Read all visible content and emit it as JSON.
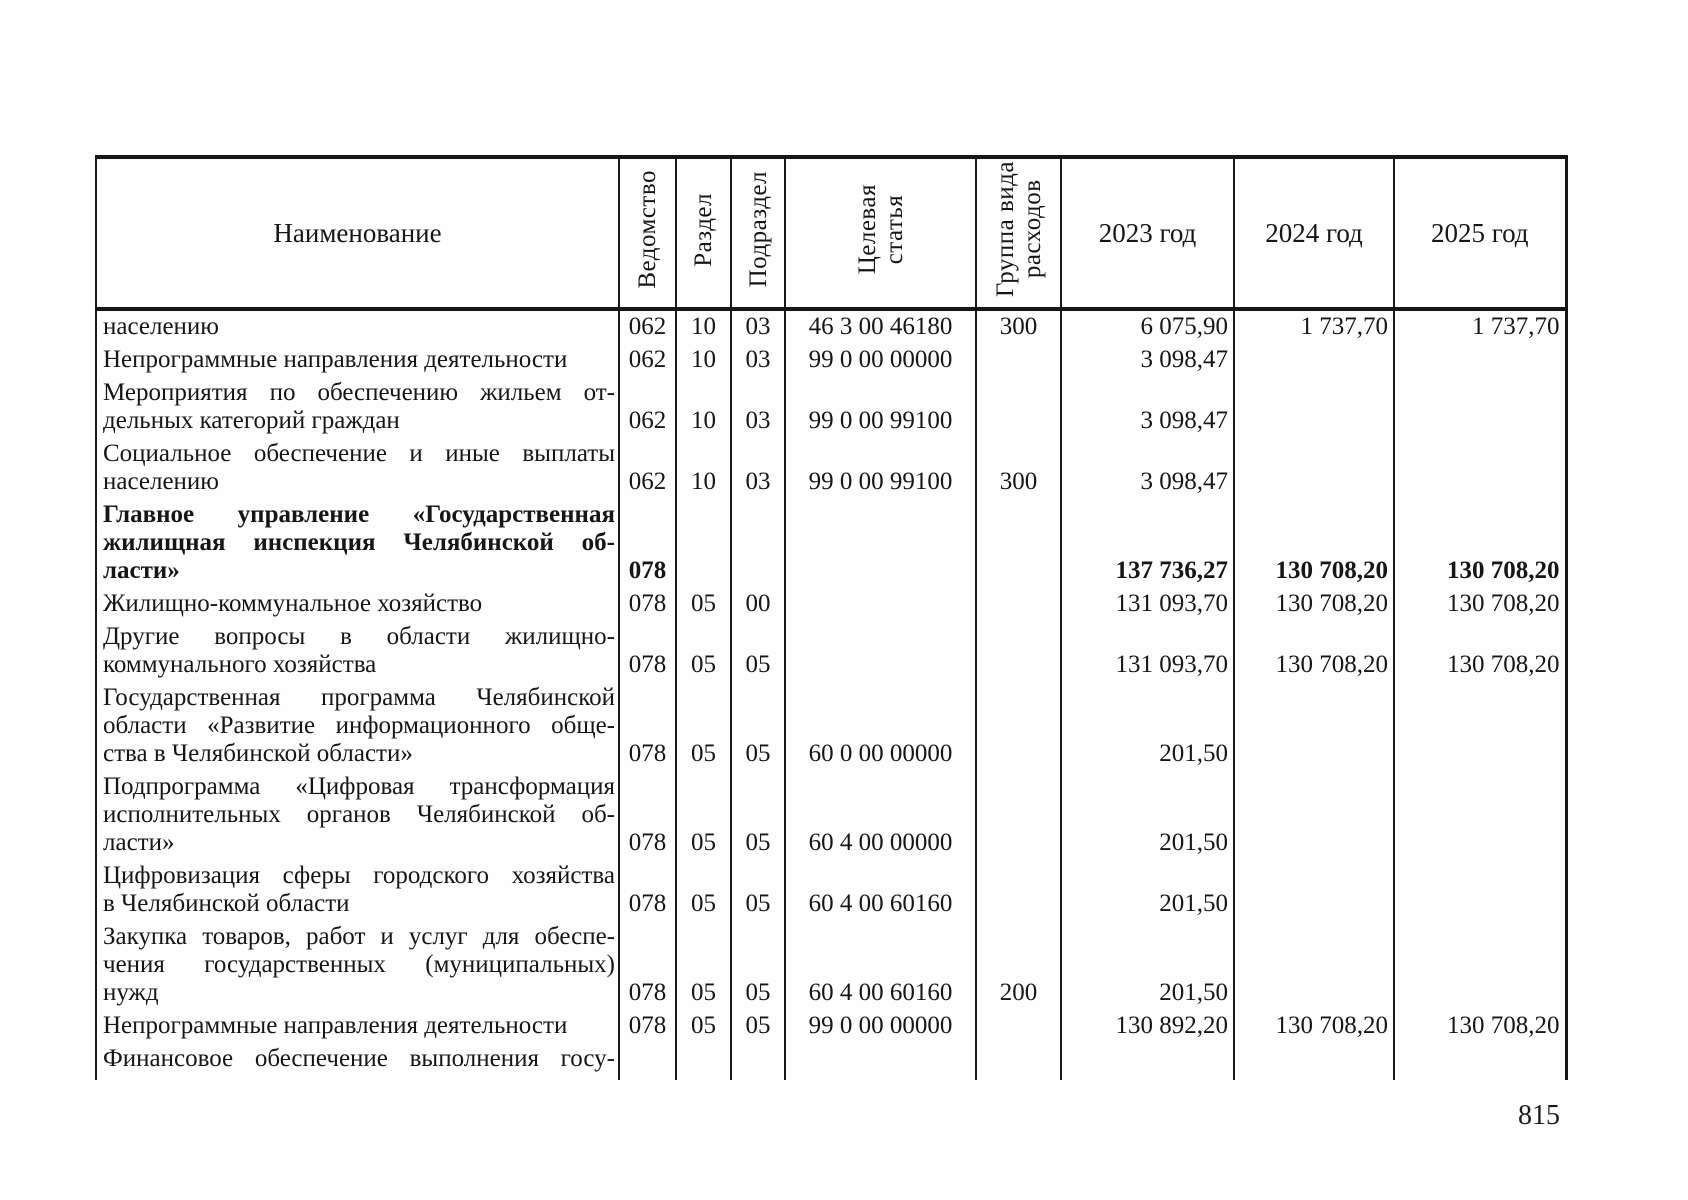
{
  "page_number": "815",
  "table": {
    "headers": {
      "name": "Наименование",
      "ved": "Ведомство",
      "raz": "Раздел",
      "pod": "Подраздел",
      "cel": "Целевая\nстатья",
      "grp": "Группа вида\nрасходов",
      "y2023": "2023 год",
      "y2024": "2024 год",
      "y2025": "2025 год"
    },
    "rows": [
      {
        "lines": [
          "населению"
        ],
        "ved": "062",
        "raz": "10",
        "pod": "03",
        "cel": "46 3 00 46180",
        "grp": "300",
        "y2023": "6 075,90",
        "y2024": "1 737,70",
        "y2025": "1 737,70"
      },
      {
        "lines": [
          "Непрограммные направления деятельности"
        ],
        "ved": "062",
        "raz": "10",
        "pod": "03",
        "cel": "99 0 00 00000",
        "grp": "",
        "y2023": "3 098,47",
        "y2024": "",
        "y2025": ""
      },
      {
        "lines": [
          "Мероприятия по обеспечению жильем от-",
          "дельных категорий граждан"
        ],
        "ved": "062",
        "raz": "10",
        "pod": "03",
        "cel": "99 0 00 99100",
        "grp": "",
        "y2023": "3 098,47",
        "y2024": "",
        "y2025": ""
      },
      {
        "lines": [
          "Социальное обеспечение и иные выплаты",
          "населению"
        ],
        "ved": "062",
        "raz": "10",
        "pod": "03",
        "cel": "99 0 00 99100",
        "grp": "300",
        "y2023": "3 098,47",
        "y2024": "",
        "y2025": ""
      },
      {
        "bold": true,
        "lines": [
          "Главное управление «Государственная",
          "жилищная инспекция Челябинской об-",
          "ласти»"
        ],
        "ved": "078",
        "raz": "",
        "pod": "",
        "cel": "",
        "grp": "",
        "y2023": "137 736,27",
        "y2024": "130 708,20",
        "y2025": "130 708,20"
      },
      {
        "lines": [
          "Жилищно-коммунальное хозяйство"
        ],
        "ved": "078",
        "raz": "05",
        "pod": "00",
        "cel": "",
        "grp": "",
        "y2023": "131 093,70",
        "y2024": "130 708,20",
        "y2025": "130 708,20"
      },
      {
        "lines": [
          "Другие вопросы в области жилищно-",
          "коммунального хозяйства"
        ],
        "ved": "078",
        "raz": "05",
        "pod": "05",
        "cel": "",
        "grp": "",
        "y2023": "131 093,70",
        "y2024": "130 708,20",
        "y2025": "130 708,20"
      },
      {
        "lines": [
          "Государственная программа Челябинской",
          "области «Развитие информационного обще-",
          "ства в Челябинской области»"
        ],
        "ved": "078",
        "raz": "05",
        "pod": "05",
        "cel": "60 0 00 00000",
        "grp": "",
        "y2023": "201,50",
        "y2024": "",
        "y2025": ""
      },
      {
        "lines": [
          "Подпрограмма «Цифровая трансформация",
          "исполнительных органов Челябинской об-",
          "ласти»"
        ],
        "ved": "078",
        "raz": "05",
        "pod": "05",
        "cel": "60 4 00 00000",
        "grp": "",
        "y2023": "201,50",
        "y2024": "",
        "y2025": ""
      },
      {
        "lines": [
          "Цифровизация сферы городского хозяйства",
          "в Челябинской области"
        ],
        "ved": "078",
        "raz": "05",
        "pod": "05",
        "cel": "60 4 00 60160",
        "grp": "",
        "y2023": "201,50",
        "y2024": "",
        "y2025": ""
      },
      {
        "lines": [
          "Закупка товаров, работ и услуг для обеспе-",
          "чения государственных (муниципальных)",
          "нужд"
        ],
        "ved": "078",
        "raz": "05",
        "pod": "05",
        "cel": "60 4 00 60160",
        "grp": "200",
        "y2023": "201,50",
        "y2024": "",
        "y2025": ""
      },
      {
        "lines": [
          "Непрограммные направления деятельности"
        ],
        "ved": "078",
        "raz": "05",
        "pod": "05",
        "cel": "99 0 00 00000",
        "grp": "",
        "y2023": "130 892,20",
        "y2024": "130 708,20",
        "y2025": "130 708,20"
      },
      {
        "clip": true,
        "justify_all": true,
        "lines": [
          "Финансовое обеспечение выполнения госу-"
        ],
        "ved": "",
        "raz": "",
        "pod": "",
        "cel": "",
        "grp": "",
        "y2023": "",
        "y2024": "",
        "y2025": ""
      }
    ]
  }
}
